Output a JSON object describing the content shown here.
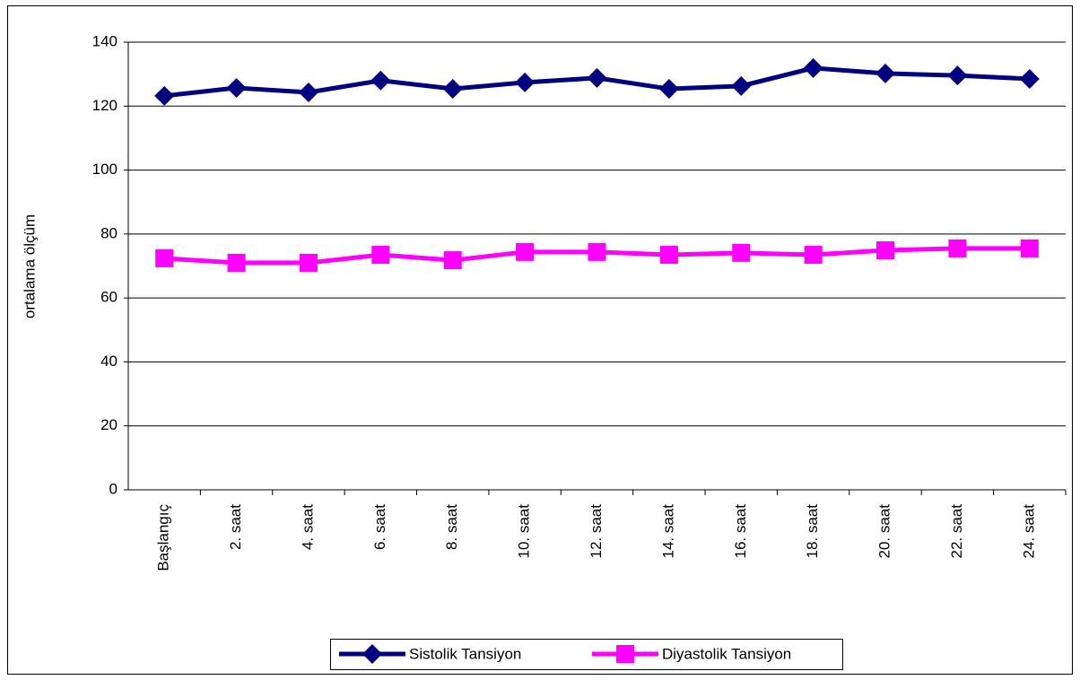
{
  "chart_data": {
    "type": "line",
    "y_label": "ortalama ölçüm",
    "categories": [
      "Başlangıç",
      "2. saat",
      "4. saat",
      "6. saat",
      "8. saat",
      "10. saat",
      "12. saat",
      "14. saat",
      "16. saat",
      "18. saat",
      "20. saat",
      "22. saat",
      "24. saat"
    ],
    "series": [
      {
        "name": "Sistolik Tansiyon",
        "color": "#000080",
        "marker": "diamond",
        "values": [
          123.2,
          125.7,
          124.3,
          128,
          125.4,
          127.4,
          128.8,
          125.4,
          126.3,
          131.9,
          130.2,
          129.6,
          128.5
        ]
      },
      {
        "name": "Diyastolik Tansiyon",
        "color": "#ff00ff",
        "marker": "square",
        "values": [
          72.4,
          71,
          71,
          73.5,
          71.8,
          74.4,
          74.4,
          73.5,
          74.1,
          73.5,
          74.9,
          75.5,
          75.5
        ]
      }
    ],
    "ylim": [
      0,
      140
    ],
    "yticks": [
      0,
      20,
      40,
      60,
      80,
      100,
      120,
      140
    ],
    "grid": true,
    "legend": "bottom"
  }
}
